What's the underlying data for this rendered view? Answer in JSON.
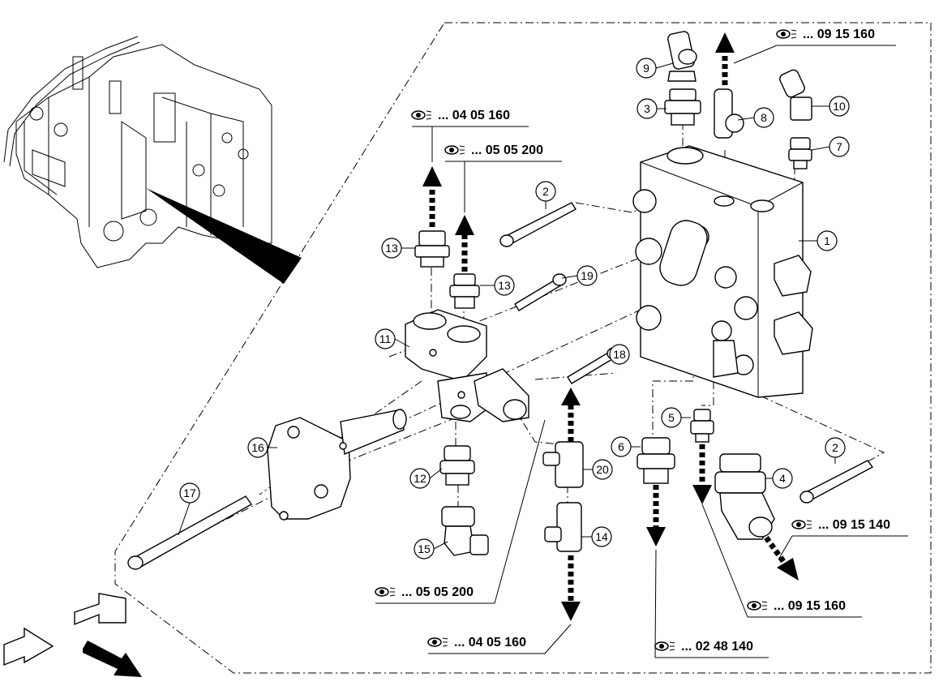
{
  "diagram": {
    "callouts": [
      {
        "number": "1"
      },
      {
        "number": "2"
      },
      {
        "number": "2"
      },
      {
        "number": "3"
      },
      {
        "number": "4"
      },
      {
        "number": "5"
      },
      {
        "number": "6"
      },
      {
        "number": "7"
      },
      {
        "number": "8"
      },
      {
        "number": "9"
      },
      {
        "number": "10"
      },
      {
        "number": "11"
      },
      {
        "number": "12"
      },
      {
        "number": "13"
      },
      {
        "number": "13"
      },
      {
        "number": "14"
      },
      {
        "number": "15"
      },
      {
        "number": "16"
      },
      {
        "number": "17"
      },
      {
        "number": "18"
      },
      {
        "number": "19"
      },
      {
        "number": "20"
      }
    ],
    "references": [
      {
        "text": "... 09 15 160"
      },
      {
        "text": "... 04 05 160"
      },
      {
        "text": "... 05 05 200"
      },
      {
        "text": "... 09 15 140"
      },
      {
        "text": "... 05 05 200"
      },
      {
        "text": "... 09 15 160"
      },
      {
        "text": "... 04 05 160"
      },
      {
        "text": "... 02 48 140"
      }
    ],
    "nav_arrows": [
      {
        "icon": "previous-page-arrow-icon"
      },
      {
        "icon": "next-page-arrow-icon"
      },
      {
        "icon": "forward-arrow-icon"
      }
    ]
  }
}
